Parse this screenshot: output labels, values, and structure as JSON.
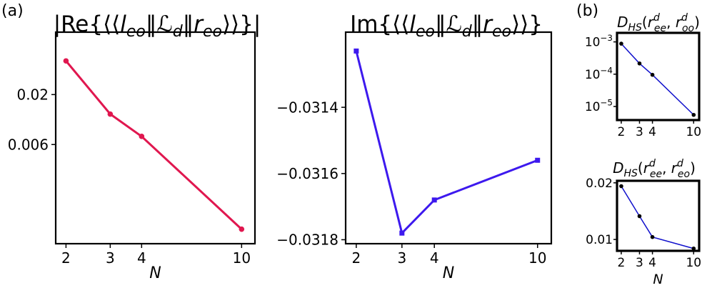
{
  "panel_labels": {
    "a": "(a)",
    "b": "(b)"
  },
  "chart_data": [
    {
      "type": "line",
      "title": "|Re{⟨⟨l_eo‖ℒ_d‖r_eo⟩⟩}|",
      "xlabel": "N",
      "ylabel": "",
      "xscale": "log",
      "yscale": "log",
      "x": [
        2,
        3,
        4,
        10
      ],
      "series": [
        {
          "values": [
            0.045,
            0.0125,
            0.0073,
            0.00078
          ],
          "color": "#e0174f",
          "marker": "circle"
        }
      ],
      "xticks": [
        "2",
        "3",
        "4",
        "10"
      ],
      "yticks": [
        {
          "value": 0.02,
          "label": "0.02"
        },
        {
          "value": 0.006,
          "label": "0.006"
        }
      ],
      "xlim": [
        1.82,
        11.3
      ],
      "ylim": [
        0.00055,
        0.09
      ],
      "grid": false
    },
    {
      "type": "line",
      "title": "Im{⟨⟨l_eo‖ℒ_d‖r_eo⟩⟩}",
      "xlabel": "N",
      "ylabel": "",
      "xscale": "log",
      "yscale": "linear",
      "x": [
        2,
        3,
        4,
        10
      ],
      "series": [
        {
          "values": [
            -0.03123,
            -0.03178,
            -0.03168,
            -0.03156
          ],
          "color": "#3d19ee",
          "marker": "square"
        }
      ],
      "xticks": [
        "2",
        "3",
        "4",
        "10"
      ],
      "yticks": [
        {
          "value": -0.0314,
          "label": "−0.0314"
        },
        {
          "value": -0.0316,
          "label": "−0.0316"
        },
        {
          "value": -0.0318,
          "label": "−0.0318"
        }
      ],
      "xlim": [
        1.82,
        11.3
      ],
      "ylim": [
        -0.031812,
        -0.031173
      ],
      "grid": false
    },
    {
      "type": "line",
      "title": "D_HS(r^d_ee, r^d_oo)",
      "xlabel": "",
      "ylabel": "",
      "xscale": "log",
      "yscale": "log",
      "x": [
        2,
        3,
        4,
        10
      ],
      "series": [
        {
          "values": [
            0.00088,
            0.000215,
            9.55e-05,
            5.5e-06
          ],
          "color": "#1010cc",
          "marker": "circle"
        }
      ],
      "xticks": [
        "2",
        "3",
        "4",
        "10"
      ],
      "yticks": [
        {
          "value": 0.001,
          "label": "10",
          "exp": "−3"
        },
        {
          "value": 0.0001,
          "label": "10",
          "exp": "−4"
        },
        {
          "value": 1e-05,
          "label": "10",
          "exp": "−5"
        }
      ],
      "xlim": [
        1.82,
        11.3
      ],
      "ylim": [
        3.8e-06,
        0.0019
      ],
      "grid": false
    },
    {
      "type": "line",
      "title": "D_HS(r^d_ee, r^d_eo)",
      "xlabel": "N",
      "ylabel": "",
      "xscale": "log",
      "yscale": "log",
      "x": [
        2,
        3,
        4,
        10
      ],
      "series": [
        {
          "values": [
            0.0192,
            0.0133,
            0.0103,
            0.00895
          ],
          "color": "#1010cc",
          "marker": "circle"
        }
      ],
      "xticks": [
        "2",
        "3",
        "4",
        "10"
      ],
      "yticks": [
        {
          "value": 0.02,
          "label": "0.02"
        },
        {
          "value": 0.01,
          "label": "0.01"
        }
      ],
      "xlim": [
        1.82,
        11.3
      ],
      "ylim": [
        0.0087,
        0.0205
      ],
      "grid": false
    }
  ]
}
